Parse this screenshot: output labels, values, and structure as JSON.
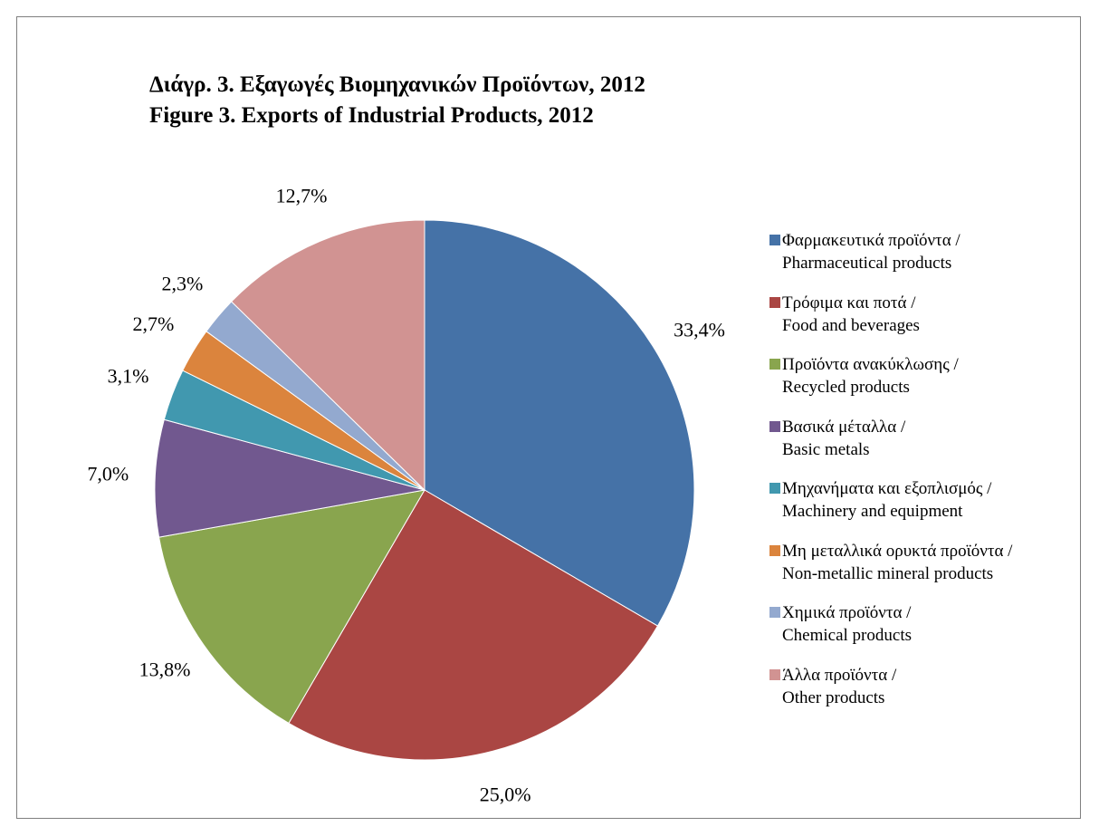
{
  "chart_data": {
    "type": "pie",
    "title": "Διάγρ. 3. Εξαγωγές Βιομηχανικών Προϊόντων, 2012",
    "subtitle": "Figure 3. Exports of Industrial Products, 2012",
    "legend_position": "right",
    "slices": [
      {
        "name_gr": "Φαρμακευτικά προϊόντα /",
        "name_en": "Pharmaceutical products",
        "value": 33.4,
        "label": "33,4%",
        "color": "#4572A7"
      },
      {
        "name_gr": "Τρόφιμα και ποτά /",
        "name_en": "Food and beverages",
        "value": 25.0,
        "label": "25,0%",
        "color": "#AA4643"
      },
      {
        "name_gr": "Προϊόντα ανακύκλωσης /",
        "name_en": "Recycled products",
        "value": 13.8,
        "label": "13,8%",
        "color": "#89A54E"
      },
      {
        "name_gr": "Βασικά μέταλλα /",
        "name_en": "Basic metals",
        "value": 7.0,
        "label": "7,0%",
        "color": "#71588F"
      },
      {
        "name_gr": "Μηχανήματα και εξοπλισμός /",
        "name_en": "Machinery and equipment",
        "value": 3.1,
        "label": "3,1%",
        "color": "#4198AF"
      },
      {
        "name_gr": "Μη μεταλλικά ορυκτά προϊόντα /",
        "name_en": "Non-metallic mineral products",
        "value": 2.7,
        "label": "2,7%",
        "color": "#DB843D"
      },
      {
        "name_gr": "Χημικά προϊόντα /",
        "name_en": "Chemical products",
        "value": 2.3,
        "label": "2,3%",
        "color": "#93A9CF"
      },
      {
        "name_gr": "Άλλα προϊόντα /",
        "name_en": "Other products",
        "value": 12.7,
        "label": "12,7%",
        "color": "#D19392"
      }
    ]
  }
}
